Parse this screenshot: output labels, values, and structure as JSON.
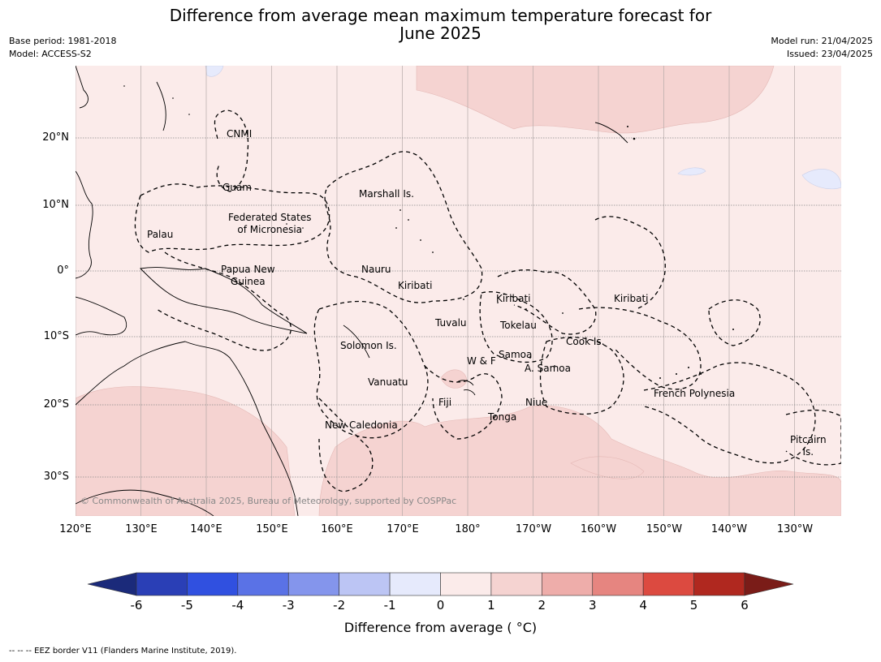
{
  "title_line1": "Difference from average mean maximum temperature forecast for",
  "title_line2": "June 2025",
  "base_period": "Base period: 1981-2018",
  "model": "Model: ACCESS-S2",
  "model_run": "Model run: 21/04/2025",
  "issued": "Issued: 23/04/2025",
  "lat_labels": [
    "20°N",
    "10°N",
    "0°",
    "10°S",
    "20°S",
    "30°S"
  ],
  "lon_labels": [
    "120°E",
    "130°E",
    "140°E",
    "150°E",
    "160°E",
    "170°E",
    "180°",
    "170°W",
    "160°W",
    "150°W",
    "140°W",
    "130°W"
  ],
  "places": [
    {
      "id": "cnmi",
      "label": "CNMI"
    },
    {
      "id": "guam",
      "label": "Guam"
    },
    {
      "id": "marshall",
      "label": "Marshall Is."
    },
    {
      "id": "fsm",
      "label": "Federated States\nof Micronesia"
    },
    {
      "id": "palau",
      "label": "Palau"
    },
    {
      "id": "png",
      "label": "Papua New\nGuinea"
    },
    {
      "id": "nauru",
      "label": "Nauru"
    },
    {
      "id": "kiribati-w",
      "label": "Kiribati"
    },
    {
      "id": "kiribati-c",
      "label": "Kiribati"
    },
    {
      "id": "kiribati-e",
      "label": "Kiribati"
    },
    {
      "id": "tuvalu",
      "label": "Tuvalu"
    },
    {
      "id": "tokelau",
      "label": "Tokelau"
    },
    {
      "id": "cook",
      "label": "Cook Is."
    },
    {
      "id": "solomon",
      "label": "Solomon Is."
    },
    {
      "id": "wf",
      "label": "W & F"
    },
    {
      "id": "samoa",
      "label": "Samoa"
    },
    {
      "id": "asamoa",
      "label": "A. Samoa"
    },
    {
      "id": "vanuatu",
      "label": "Vanuatu"
    },
    {
      "id": "fiji",
      "label": "Fiji"
    },
    {
      "id": "niue",
      "label": "Niue"
    },
    {
      "id": "frpoly",
      "label": "French Polynesia"
    },
    {
      "id": "tonga",
      "label": "Tonga"
    },
    {
      "id": "newcal",
      "label": "New Caledonia"
    },
    {
      "id": "pitcairn",
      "label": "Pitcairn\nIs."
    }
  ],
  "copyright": "© Commonwealth of Australia 2025, Bureau of Meteorology, supported by COSPPac",
  "colorbar": {
    "ticks": [
      "-6",
      "-5",
      "-4",
      "-3",
      "-2",
      "-1",
      "0",
      "1",
      "2",
      "3",
      "4",
      "5",
      "6"
    ],
    "colors": [
      "#1b2a7a",
      "#2a3fb6",
      "#3050e0",
      "#5a72e6",
      "#8495ec",
      "#bcc5f4",
      "#e6eafc",
      "#fbebea",
      "#f5d3d1",
      "#eeadaa",
      "#e68580",
      "#dc4a40",
      "#b0281f",
      "#7a1c18"
    ],
    "label": "Difference from average ( °C)"
  },
  "footnote": "--  --  -- EEZ border V11 (Flanders Marine Institute, 2019)."
}
